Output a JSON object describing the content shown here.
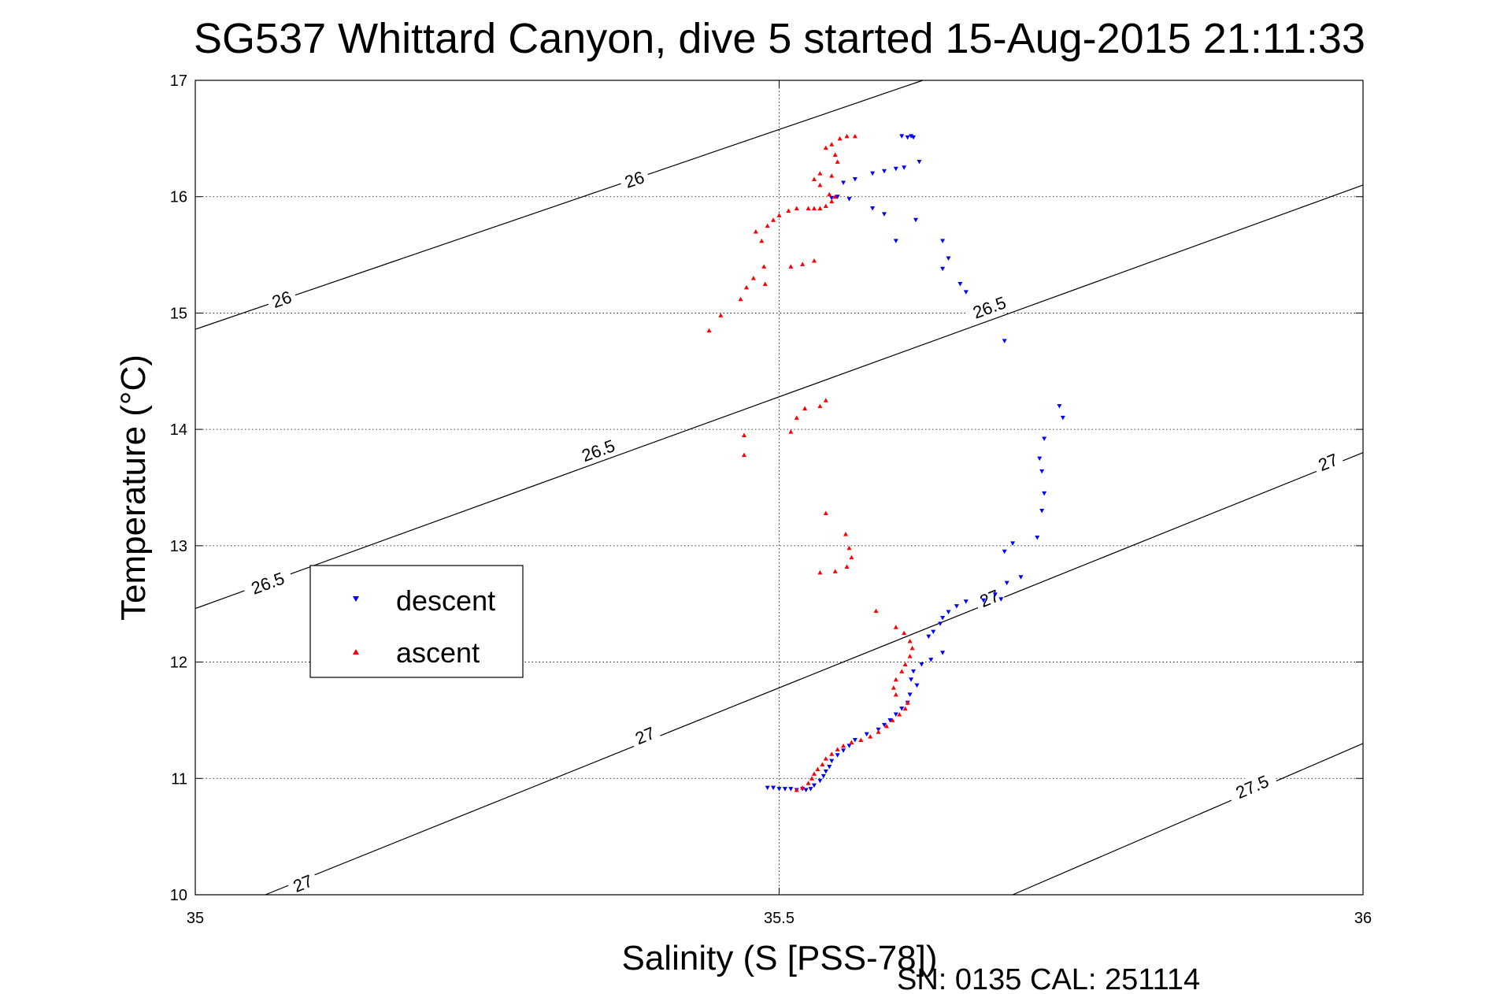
{
  "chart_data": {
    "type": "scatter",
    "title": "SG537 Whittard Canyon, dive 5 started 15-Aug-2015 21:11:33",
    "xlabel": "Salinity (S [PSS-78])",
    "ylabel": "Temperature (°C)",
    "xlim": [
      35,
      36
    ],
    "ylim": [
      10,
      17
    ],
    "xticks": [
      35,
      35.5,
      36
    ],
    "yticks": [
      10,
      11,
      12,
      13,
      14,
      15,
      16,
      17
    ],
    "xtick_labels": [
      "35",
      "35.5",
      "36"
    ],
    "ytick_labels": [
      "10",
      "11",
      "12",
      "13",
      "14",
      "15",
      "16",
      "17"
    ],
    "grid": true,
    "legend_position": "left",
    "footer_text": "SN: 0135  CAL: 251114",
    "isopycnals": [
      {
        "label": "26",
        "points": [
          [
            35,
            14.86
          ],
          [
            35.623,
            17
          ]
        ],
        "label_points": [
          [
            35.074,
            15.12
          ],
          [
            35.376,
            16.15
          ]
        ]
      },
      {
        "label": "26.5",
        "points": [
          [
            35,
            12.46
          ],
          [
            36,
            16.1
          ]
        ],
        "label_points": [
          [
            35.062,
            12.68
          ],
          [
            35.345,
            13.82
          ],
          [
            35.68,
            15.05
          ]
        ]
      },
      {
        "label": "27",
        "points": [
          [
            35.06,
            10
          ],
          [
            36,
            13.8
          ]
        ],
        "label_points": [
          [
            35.092,
            10.1
          ],
          [
            35.385,
            11.37
          ],
          [
            35.68,
            12.55
          ],
          [
            35.97,
            13.72
          ]
        ]
      },
      {
        "label": "27.5",
        "points": [
          [
            35.7,
            10
          ],
          [
            36,
            11.3
          ]
        ],
        "label_points": [
          [
            35.905,
            10.93
          ]
        ]
      }
    ],
    "series": [
      {
        "name": "descent",
        "color": "#0000ff",
        "marker": "triangle-down",
        "points": [
          [
            35.605,
            16.52
          ],
          [
            35.61,
            16.51
          ],
          [
            35.613,
            16.52
          ],
          [
            35.615,
            16.51
          ],
          [
            35.62,
            16.3
          ],
          [
            35.607,
            16.25
          ],
          [
            35.6,
            16.24
          ],
          [
            35.59,
            16.22
          ],
          [
            35.58,
            16.2
          ],
          [
            35.565,
            16.15
          ],
          [
            35.555,
            16.12
          ],
          [
            35.55,
            16.0
          ],
          [
            35.545,
            15.99
          ],
          [
            35.56,
            15.98
          ],
          [
            35.58,
            15.9
          ],
          [
            35.59,
            15.85
          ],
          [
            35.6,
            15.62
          ],
          [
            35.617,
            15.8
          ],
          [
            35.64,
            15.62
          ],
          [
            35.645,
            15.47
          ],
          [
            35.64,
            15.38
          ],
          [
            35.655,
            15.25
          ],
          [
            35.66,
            15.18
          ],
          [
            35.693,
            14.76
          ],
          [
            35.74,
            14.2
          ],
          [
            35.743,
            14.1
          ],
          [
            35.727,
            13.92
          ],
          [
            35.723,
            13.75
          ],
          [
            35.725,
            13.64
          ],
          [
            35.727,
            13.45
          ],
          [
            35.725,
            13.3
          ],
          [
            35.721,
            13.07
          ],
          [
            35.7,
            13.02
          ],
          [
            35.693,
            12.95
          ],
          [
            35.707,
            12.73
          ],
          [
            35.695,
            12.68
          ],
          [
            35.69,
            12.54
          ],
          [
            35.685,
            12.58
          ],
          [
            35.675,
            12.53
          ],
          [
            35.66,
            12.52
          ],
          [
            35.652,
            12.48
          ],
          [
            35.645,
            12.43
          ],
          [
            35.64,
            12.38
          ],
          [
            35.638,
            12.33
          ],
          [
            35.632,
            12.26
          ],
          [
            35.628,
            12.22
          ],
          [
            35.64,
            12.08
          ],
          [
            35.63,
            12.02
          ],
          [
            35.622,
            11.98
          ],
          [
            35.615,
            11.92
          ],
          [
            35.613,
            11.85
          ],
          [
            35.618,
            11.8
          ],
          [
            35.612,
            11.72
          ],
          [
            35.61,
            11.65
          ],
          [
            35.605,
            11.6
          ],
          [
            35.6,
            11.55
          ],
          [
            35.595,
            11.5
          ],
          [
            35.59,
            11.46
          ],
          [
            35.585,
            11.42
          ],
          [
            35.575,
            11.38
          ],
          [
            35.565,
            11.33
          ],
          [
            35.56,
            11.28
          ],
          [
            35.555,
            11.24
          ],
          [
            35.55,
            11.2
          ],
          [
            35.545,
            11.15
          ],
          [
            35.543,
            11.1
          ],
          [
            35.54,
            11.06
          ],
          [
            35.538,
            11.02
          ],
          [
            35.535,
            10.98
          ],
          [
            35.53,
            10.94
          ],
          [
            35.527,
            10.91
          ],
          [
            35.523,
            10.9
          ],
          [
            35.52,
            10.91
          ],
          [
            35.515,
            10.9
          ],
          [
            35.51,
            10.91
          ],
          [
            35.505,
            10.91
          ],
          [
            35.5,
            10.91
          ],
          [
            35.495,
            10.92
          ],
          [
            35.49,
            10.92
          ]
        ]
      },
      {
        "name": "ascent",
        "color": "#ff0000",
        "marker": "triangle-up",
        "points": [
          [
            35.515,
            10.9
          ],
          [
            35.52,
            10.92
          ],
          [
            35.525,
            10.96
          ],
          [
            35.528,
            11.0
          ],
          [
            35.53,
            11.04
          ],
          [
            35.533,
            11.08
          ],
          [
            35.537,
            11.12
          ],
          [
            35.54,
            11.17
          ],
          [
            35.545,
            11.21
          ],
          [
            35.55,
            11.25
          ],
          [
            35.555,
            11.28
          ],
          [
            35.562,
            11.31
          ],
          [
            35.57,
            11.33
          ],
          [
            35.578,
            11.36
          ],
          [
            35.585,
            11.4
          ],
          [
            35.592,
            11.45
          ],
          [
            35.597,
            11.5
          ],
          [
            35.603,
            11.55
          ],
          [
            35.608,
            11.6
          ],
          [
            35.61,
            11.65
          ],
          [
            35.6,
            11.72
          ],
          [
            35.598,
            11.78
          ],
          [
            35.6,
            11.85
          ],
          [
            35.605,
            11.92
          ],
          [
            35.608,
            11.98
          ],
          [
            35.612,
            12.05
          ],
          [
            35.614,
            12.12
          ],
          [
            35.612,
            12.18
          ],
          [
            35.607,
            12.25
          ],
          [
            35.6,
            12.3
          ],
          [
            35.583,
            12.44
          ],
          [
            35.548,
            12.78
          ],
          [
            35.558,
            12.82
          ],
          [
            35.562,
            12.9
          ],
          [
            35.56,
            12.98
          ],
          [
            35.557,
            13.1
          ],
          [
            35.54,
            13.28
          ],
          [
            35.535,
            12.77
          ],
          [
            35.47,
            13.78
          ],
          [
            35.47,
            13.95
          ],
          [
            35.51,
            13.98
          ],
          [
            35.515,
            14.1
          ],
          [
            35.522,
            14.18
          ],
          [
            35.535,
            14.2
          ],
          [
            35.54,
            14.25
          ],
          [
            35.44,
            14.85
          ],
          [
            35.45,
            14.98
          ],
          [
            35.467,
            15.12
          ],
          [
            35.472,
            15.22
          ],
          [
            35.478,
            15.3
          ],
          [
            35.488,
            15.25
          ],
          [
            35.487,
            15.4
          ],
          [
            35.51,
            15.4
          ],
          [
            35.52,
            15.42
          ],
          [
            35.53,
            15.45
          ],
          [
            35.485,
            15.62
          ],
          [
            35.48,
            15.7
          ],
          [
            35.49,
            15.75
          ],
          [
            35.495,
            15.8
          ],
          [
            35.5,
            15.84
          ],
          [
            35.508,
            15.88
          ],
          [
            35.515,
            15.9
          ],
          [
            35.525,
            15.9
          ],
          [
            35.53,
            15.9
          ],
          [
            35.535,
            15.9
          ],
          [
            35.54,
            15.92
          ],
          [
            35.545,
            15.96
          ],
          [
            35.548,
            16.0
          ],
          [
            35.543,
            16.02
          ],
          [
            35.535,
            16.1
          ],
          [
            35.53,
            16.15
          ],
          [
            35.535,
            16.2
          ],
          [
            35.545,
            16.18
          ],
          [
            35.55,
            16.3
          ],
          [
            35.548,
            16.36
          ],
          [
            35.54,
            16.42
          ],
          [
            35.545,
            16.45
          ],
          [
            35.552,
            16.5
          ],
          [
            35.558,
            16.52
          ],
          [
            35.565,
            16.52
          ]
        ]
      }
    ]
  }
}
